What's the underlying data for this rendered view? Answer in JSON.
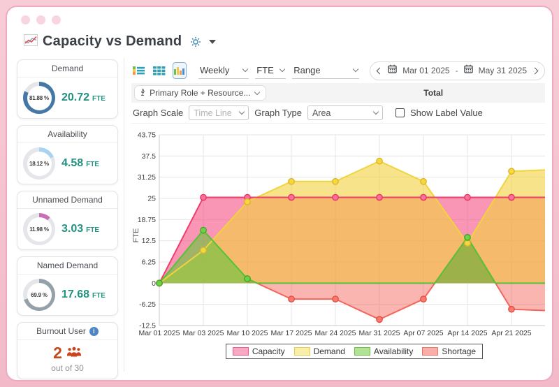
{
  "header": {
    "title": "Capacity vs Demand"
  },
  "sidebar": {
    "cards": [
      {
        "title": "Demand",
        "percent": "81.88 %",
        "value": "20.72",
        "unit": "FTE",
        "donut_color": "#4678a6",
        "donut_pct": 81.88
      },
      {
        "title": "Availability",
        "percent": "18.12 %",
        "value": "4.58",
        "unit": "FTE",
        "donut_color": "#a8d2ef",
        "donut_pct": 18.12
      },
      {
        "title": "Unnamed Demand",
        "percent": "11.98 %",
        "value": "3.03",
        "unit": "FTE",
        "donut_color": "#c96fb4",
        "donut_pct": 11.98
      },
      {
        "title": "Named Demand",
        "percent": "69.9 %",
        "value": "17.68",
        "unit": "FTE",
        "donut_color": "#95a1a9",
        "donut_pct": 69.9
      }
    ],
    "burnout": {
      "title": "Burnout User",
      "info_icon": "i",
      "count": "2",
      "caption": "out of 30",
      "accent_color": "#c4491d"
    }
  },
  "toolbar": {
    "period_select": "Weekly",
    "unit_select": "FTE",
    "range_select": "Range",
    "date_start": "Mar 01 2025",
    "date_separator": "-",
    "date_end": "May 31 2025"
  },
  "grouping": {
    "button_label": "Primary Role + Resource...",
    "column_header": "Total"
  },
  "controls": {
    "graph_scale_label": "Graph Scale",
    "graph_scale_value": "Time Line",
    "graph_type_label": "Graph Type",
    "graph_type_value": "Area",
    "show_label_checkbox": "Show Label Value"
  },
  "chart_data": {
    "type": "area",
    "ylabel": "FTE",
    "x_labels": [
      "Mar 01 2025",
      "Mar 03 2025",
      "Mar 10 2025",
      "Mar 17 2025",
      "Mar 24 2025",
      "Mar 31 2025",
      "Apr 07 2025",
      "Apr 14 2025",
      "Apr 21 2025"
    ],
    "yticks": [
      43.75,
      37.5,
      31.25,
      25,
      18.75,
      12.5,
      6.25,
      0,
      -6.25,
      -12.5
    ],
    "ylim": [
      -12.5,
      43.75
    ],
    "grid": true,
    "clipped_last_point": true,
    "series": [
      {
        "name": "Capacity",
        "values": [
          0,
          25.3,
          25.3,
          25.3,
          25.3,
          25.3,
          25.3,
          25.3,
          25.3,
          25.3
        ],
        "line_color": "#f03d6e",
        "fill_color": "rgba(244,64,120,0.55)",
        "dot_fill": "#f8719b",
        "dot_stroke": "#e73562"
      },
      {
        "name": "Demand",
        "values": [
          0,
          9.7,
          24,
          30,
          30,
          36,
          30,
          11.8,
          33,
          33.5
        ],
        "line_color": "#f0d43e",
        "fill_color": "rgba(242,210,60,0.6)",
        "dot_fill": "#f5d83f",
        "dot_stroke": "#ddb52a"
      },
      {
        "name": "Availability",
        "values": [
          0,
          15.6,
          1.3,
          0,
          0,
          0,
          0,
          13.5,
          0,
          0
        ],
        "line_color": "#55c335",
        "fill_color": "rgba(110,195,65,0.65)",
        "dot_fill": "#6fd149",
        "dot_stroke": "#45a426"
      },
      {
        "name": "Shortage",
        "values": [
          0,
          0,
          0,
          -4.7,
          -4.7,
          -10.7,
          -4.7,
          0,
          -7.7,
          -8.2
        ],
        "line_color": "#f4655c",
        "fill_color": "rgba(245,90,80,0.45)",
        "dot_fill": "#f77b70",
        "dot_stroke": "#e84c40"
      }
    ]
  },
  "legend": [
    {
      "label": "Capacity",
      "fill": "#f9a8c3",
      "border": "#ee5c8c"
    },
    {
      "label": "Demand",
      "fill": "#f9efa6",
      "border": "#e5ce4e"
    },
    {
      "label": "Availability",
      "fill": "#b2e295",
      "border": "#6cbe45"
    },
    {
      "label": "Shortage",
      "fill": "#f9afa7",
      "border": "#ef7268"
    }
  ]
}
